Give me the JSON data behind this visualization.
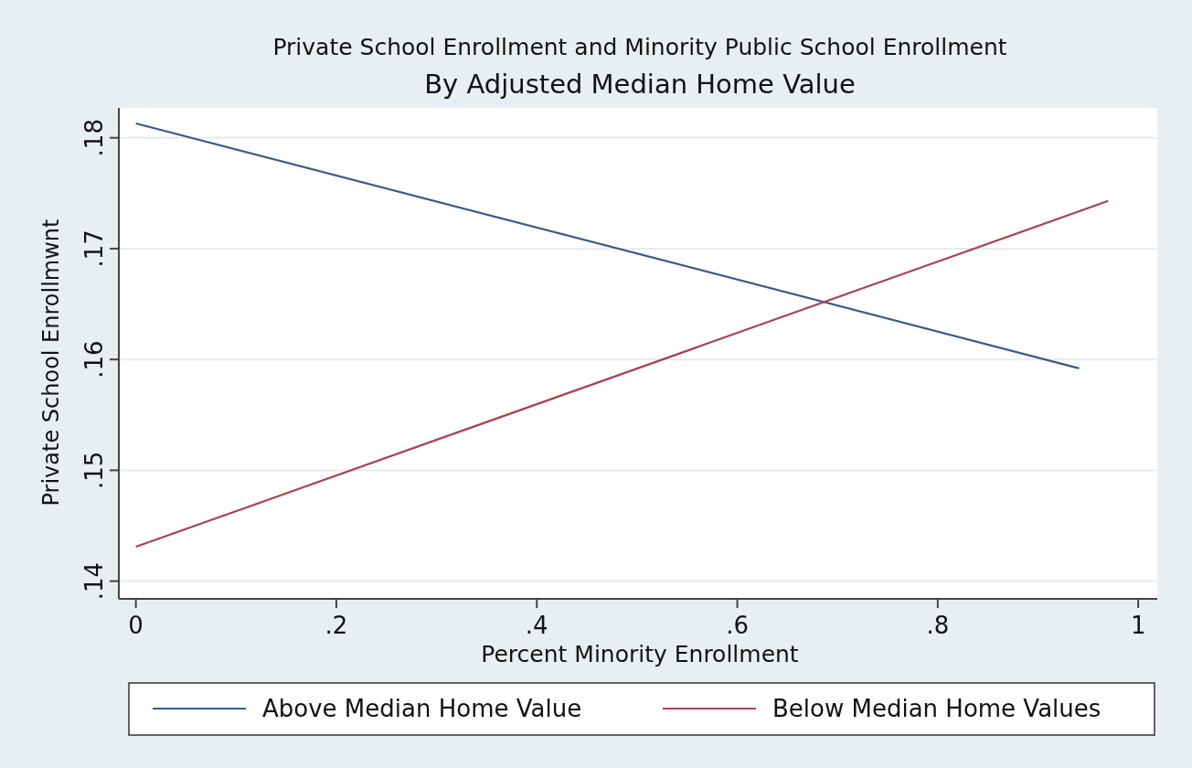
{
  "chart_data": {
    "type": "line",
    "title": "Private School Enrollment and Minority Public School Enrollment",
    "subtitle": "By Adjusted Median Home Value",
    "xlabel": "Percent Minority Enrollment",
    "ylabel": "Private School Enrollmwnt",
    "series": [
      {
        "name": "Above Median Home Value",
        "color": "#3a5a89",
        "x": [
          0,
          0.941
        ],
        "values": [
          0.1813,
          0.1592
        ]
      },
      {
        "name": "Below Median Home Values",
        "color": "#a8424f",
        "x": [
          0,
          0.97
        ],
        "values": [
          0.1431,
          0.1743
        ]
      }
    ],
    "xlim": [
      -0.017,
      1.019
    ],
    "ylim": [
      0.1384,
      0.1827
    ],
    "xticks": [
      0,
      {
        "value": 0.2,
        "label": ".2"
      },
      {
        "value": 0.4,
        "label": ".4"
      },
      {
        "value": 0.6,
        "label": ".6"
      },
      {
        "value": 0.8,
        "label": ".8"
      },
      1
    ],
    "yticks": [
      {
        "value": 0.14,
        "label": ".14"
      },
      {
        "value": 0.15,
        "label": ".15"
      },
      {
        "value": 0.16,
        "label": ".16"
      },
      {
        "value": 0.17,
        "label": ".17"
      },
      {
        "value": 0.18,
        "label": ".18"
      }
    ],
    "grid": "y",
    "legend": "bottom",
    "marker": "none",
    "line_style": "solid"
  }
}
